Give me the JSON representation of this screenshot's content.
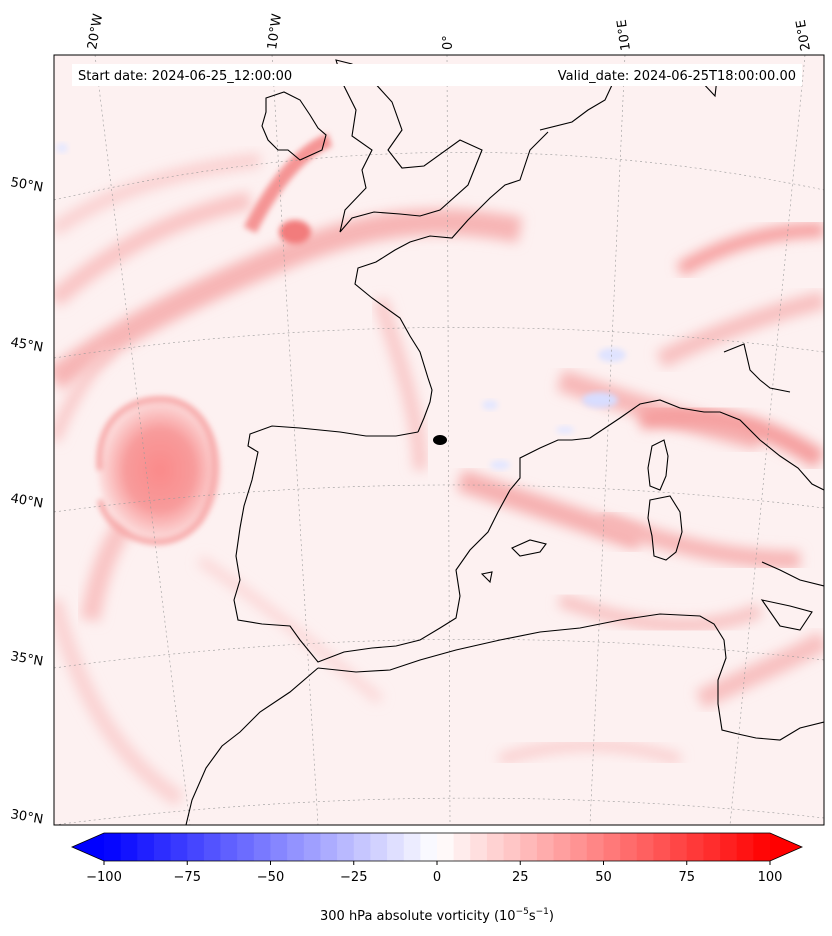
{
  "header": {
    "start_date": "Start date: 2024-06-25_12:00:00",
    "valid_date": "Valid_date: 2024-06-25T18:00:00.00"
  },
  "map": {
    "projection": "lambert-conformal",
    "lon_labels": [
      "20°W",
      "10°W",
      "0°",
      "10°E",
      "20°E"
    ],
    "lat_labels": [
      "50°N",
      "45°N",
      "40°N",
      "35°N",
      "30°N"
    ],
    "gridlines": true,
    "field": "300 hPa absolute vorticity"
  },
  "colorbar": {
    "ticks": [
      "−100",
      "−75",
      "−50",
      "−25",
      "0",
      "25",
      "50",
      "75",
      "100"
    ],
    "label_text": "300 hPa absolute vorticity (",
    "label_unit_base1": "10",
    "label_unit_exp1": "−5",
    "label_unit_base2": "s",
    "label_unit_exp2": "−1",
    "label_close": ")",
    "range": [
      -100,
      100
    ],
    "levels": 40,
    "cmap": "bwr",
    "colors": {
      "min": "#0000ff",
      "mid": "#ffffff",
      "max": "#ff0000"
    }
  }
}
